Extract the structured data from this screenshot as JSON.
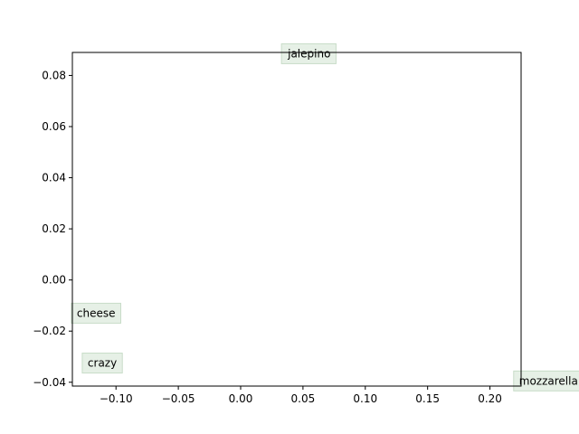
{
  "chart_data": {
    "type": "scatter",
    "title": "",
    "xlabel": "",
    "ylabel": "",
    "xlim": [
      -0.135,
      0.225
    ],
    "ylim": [
      -0.0415,
      0.089
    ],
    "grid": false,
    "x_ticks": [
      -0.1,
      -0.05,
      0.0,
      0.05,
      0.1,
      0.15,
      0.2
    ],
    "x_tick_labels": [
      "−0.10",
      "−0.05",
      "0.00",
      "0.05",
      "0.10",
      "0.15",
      "0.20"
    ],
    "y_ticks": [
      -0.04,
      -0.02,
      0.0,
      0.02,
      0.04,
      0.06,
      0.08
    ],
    "y_tick_labels": [
      "−0.04",
      "−0.02",
      "0.00",
      "0.02",
      "0.04",
      "0.06",
      "0.08"
    ],
    "points": [
      {
        "label": "jalepino",
        "x": 0.055,
        "y": 0.0885
      },
      {
        "label": "cheese",
        "x": -0.116,
        "y": -0.013
      },
      {
        "label": "crazy",
        "x": -0.111,
        "y": -0.0325
      },
      {
        "label": "mozzarella",
        "x": 0.247,
        "y": -0.0395
      }
    ],
    "label_box_color": "#e6f0e6",
    "label_box_edge": "#c8dcc8"
  }
}
